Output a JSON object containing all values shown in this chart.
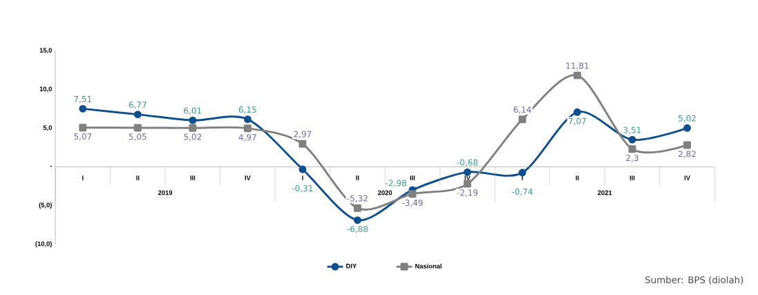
{
  "chart_data": {
    "type": "line",
    "categories": [
      "I",
      "II",
      "III",
      "IV",
      "I",
      "II",
      "III",
      "IV",
      "I",
      "II",
      "III",
      "IV"
    ],
    "series": [
      {
        "name": "DIY",
        "color": "#0f4f8e",
        "marker": "circle",
        "values": [
          7.51,
          6.77,
          6.01,
          6.15,
          -0.31,
          -6.88,
          -2.98,
          -0.68,
          -0.74,
          7.07,
          3.51,
          5.02
        ],
        "value_labels": [
          "7,51",
          "6,77",
          "6,01",
          "6,15",
          "-0,31",
          "-6,88",
          "-2,98",
          "-0,68",
          "-0,74",
          "7,07",
          "3,51",
          "5,02"
        ]
      },
      {
        "name": "Nasional",
        "color": "#808080",
        "marker": "square",
        "values": [
          5.07,
          5.05,
          5.02,
          4.97,
          2.97,
          -5.32,
          -3.49,
          -2.19,
          6.14,
          11.81,
          2.3,
          2.82
        ],
        "value_labels": [
          "5,07",
          "5,05",
          "5,02",
          "4,97",
          "2,97",
          "-5,32",
          "-3,49",
          "-2,19",
          "6,14",
          "11,81",
          "2,3",
          "2,82"
        ]
      }
    ],
    "ylim": [
      -10,
      15
    ],
    "yticks": [
      {
        "value": -10,
        "label": "(10,0)"
      },
      {
        "value": -5,
        "label": "(5,0)"
      },
      {
        "value": 0,
        "label": "-"
      },
      {
        "value": 5,
        "label": "5,0"
      },
      {
        "value": 10,
        "label": "10,0"
      },
      {
        "value": 15,
        "label": "15,0"
      }
    ],
    "legend": "bottom",
    "grid": false,
    "annotations": [
      "2019",
      "2020",
      "2021",
      "Sumber: BPS (diolah)"
    ]
  }
}
